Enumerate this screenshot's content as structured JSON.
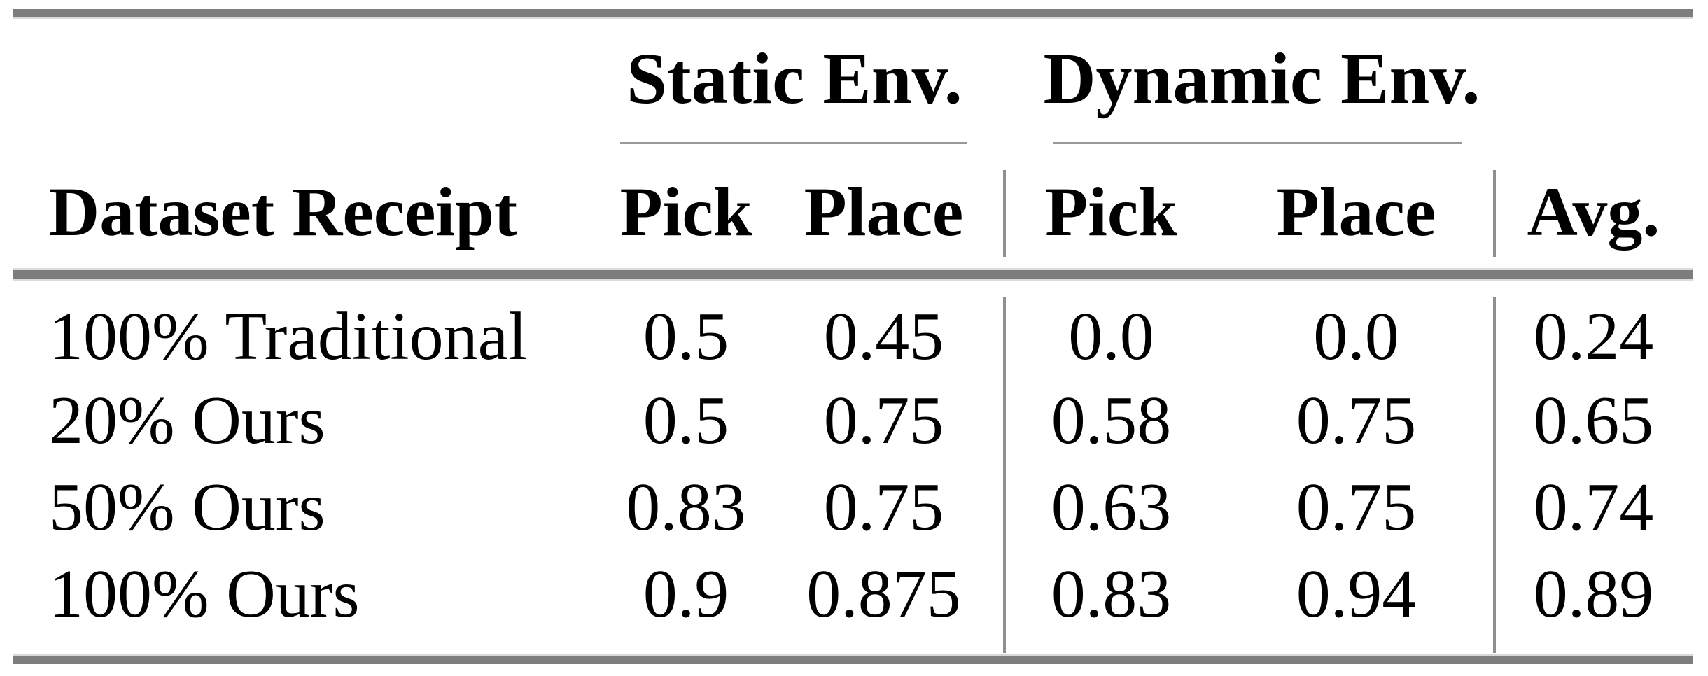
{
  "table": {
    "groups": [
      {
        "label": "Static Env."
      },
      {
        "label": "Dynamic Env."
      }
    ],
    "headers": {
      "row_label": "Dataset Receipt",
      "static_pick": "Pick",
      "static_place": "Place",
      "dynamic_pick": "Pick",
      "dynamic_place": "Place",
      "avg": "Avg."
    },
    "rows": [
      {
        "label": "100% Traditional",
        "static_pick": "0.5",
        "static_place": "0.45",
        "dynamic_pick": "0.0",
        "dynamic_place": "0.0",
        "avg": "0.24"
      },
      {
        "label": "20% Ours",
        "static_pick": "0.5",
        "static_place": "0.75",
        "dynamic_pick": "0.58",
        "dynamic_place": "0.75",
        "avg": "0.65"
      },
      {
        "label": "50% Ours",
        "static_pick": "0.83",
        "static_place": "0.75",
        "dynamic_pick": "0.63",
        "dynamic_place": "0.75",
        "avg": "0.74"
      },
      {
        "label": "100% Ours",
        "static_pick": "0.9",
        "static_place": "0.875",
        "dynamic_pick": "0.83",
        "dynamic_place": "0.94",
        "avg": "0.89"
      }
    ]
  },
  "chart_data": {
    "type": "table",
    "columns": [
      "Dataset Receipt",
      "Static Env. Pick",
      "Static Env. Place",
      "Dynamic Env. Pick",
      "Dynamic Env. Place",
      "Avg."
    ],
    "rows": [
      [
        "100% Traditional",
        0.5,
        0.45,
        0.0,
        0.0,
        0.24
      ],
      [
        "20% Ours",
        0.5,
        0.75,
        0.58,
        0.75,
        0.65
      ],
      [
        "50% Ours",
        0.83,
        0.75,
        0.63,
        0.75,
        0.74
      ],
      [
        "100% Ours",
        0.9,
        0.875,
        0.83,
        0.94,
        0.89
      ]
    ]
  },
  "colors": {
    "background": "#ffffff",
    "text": "#000000",
    "rule_heavy": "#7d7d7d",
    "rule_light_edge": "#d9d9d9",
    "rule_thin": "#999999",
    "column_divider": "#8f8f8f"
  }
}
